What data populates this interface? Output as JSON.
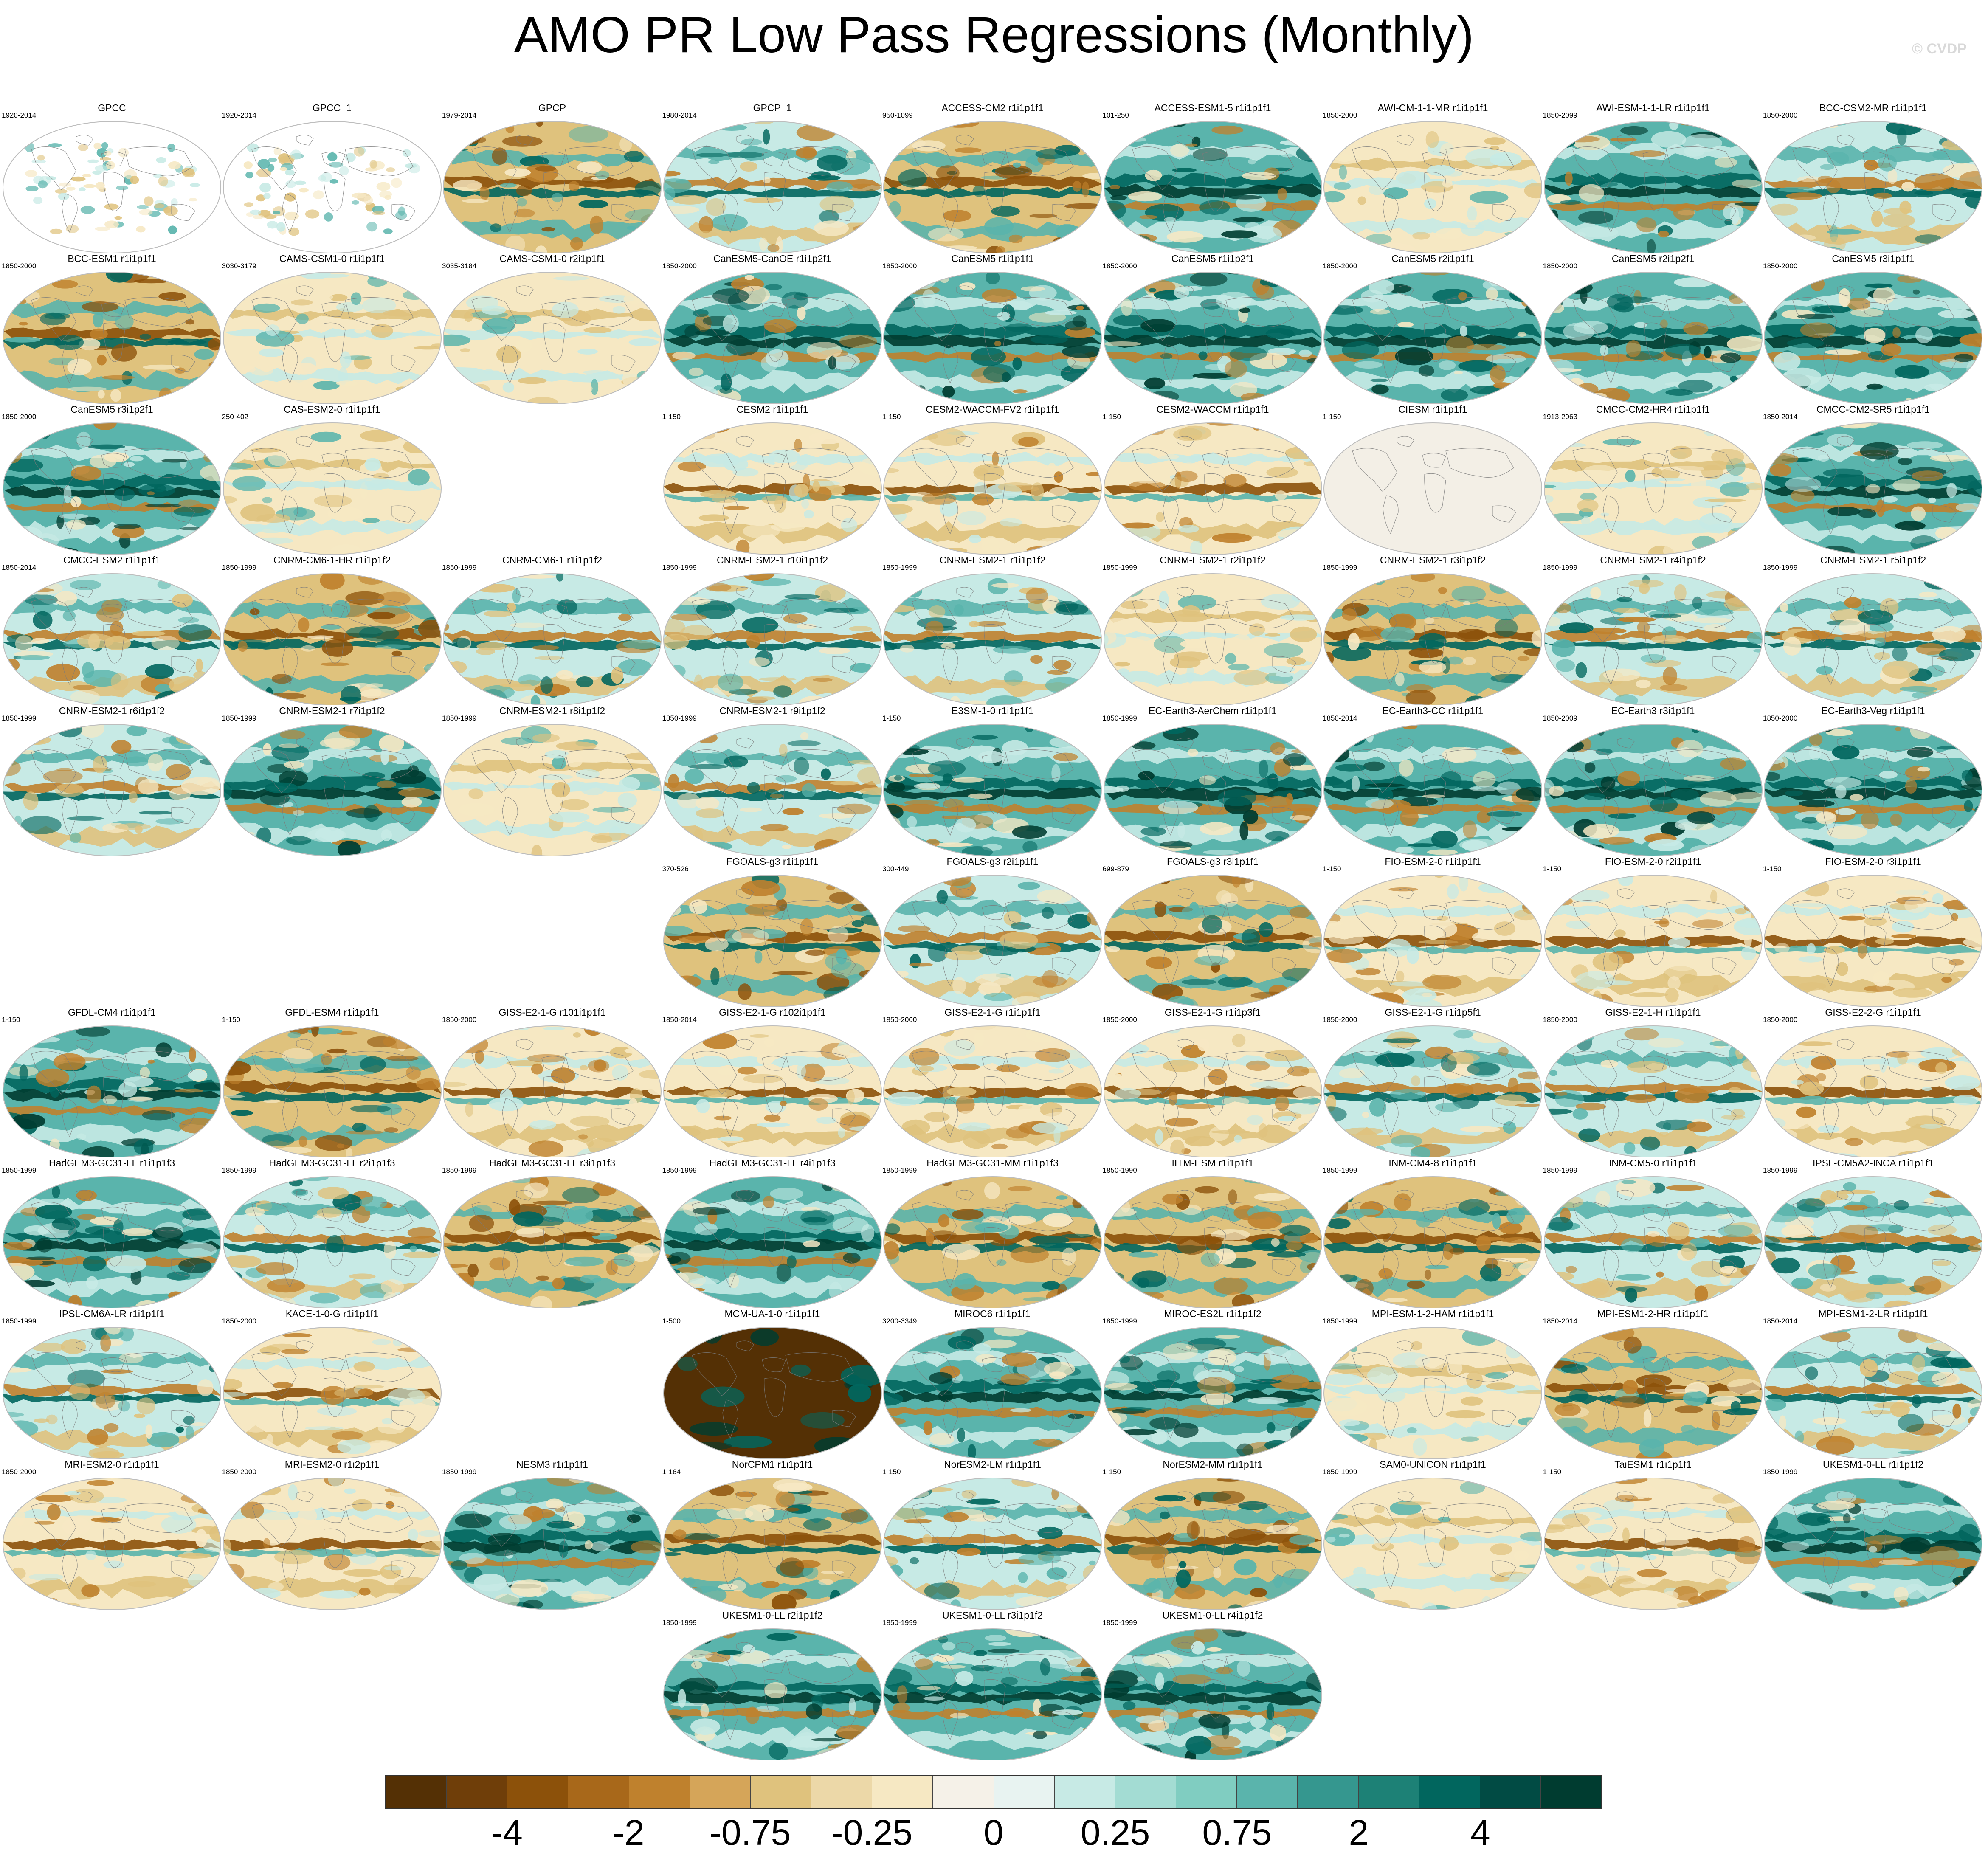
{
  "title": "AMO PR Low Pass Regressions (Monthly)",
  "watermark": "© CVDP",
  "panels": [
    {
      "name": "GPCC",
      "years": "1920-2014",
      "style": "sparse"
    },
    {
      "name": "GPCC_1",
      "years": "1920-2014",
      "style": "sparse"
    },
    {
      "name": "GPCP",
      "years": "1979-2014",
      "style": "brown"
    },
    {
      "name": "GPCP_1",
      "years": "1980-2014",
      "style": "mixed"
    },
    {
      "name": "ACCESS-CM2 r1i1p1f1",
      "years": "950-1099",
      "style": "brown"
    },
    {
      "name": "ACCESS-ESM1-5 r1i1p1f1",
      "years": "101-250",
      "style": "teal"
    },
    {
      "name": "AWI-CM-1-1-MR r1i1p1f1",
      "years": "1850-2000",
      "style": "pale"
    },
    {
      "name": "AWI-ESM-1-1-LR r1i1p1f1",
      "years": "1850-2099",
      "style": "teal"
    },
    {
      "name": "BCC-CSM2-MR r1i1p1f1",
      "years": "1850-2000",
      "style": "mixed"
    },
    {
      "name": "BCC-ESM1 r1i1p1f1",
      "years": "1850-2000",
      "style": "brown"
    },
    {
      "name": "CAMS-CSM1-0 r1i1p1f1",
      "years": "3030-3179",
      "style": "pale"
    },
    {
      "name": "CAMS-CSM1-0 r2i1p1f1",
      "years": "3035-3184",
      "style": "pale"
    },
    {
      "name": "CanESM5-CanOE r1i1p2f1",
      "years": "1850-2000",
      "style": "teal"
    },
    {
      "name": "CanESM5 r1i1p1f1",
      "years": "1850-2000",
      "style": "teal"
    },
    {
      "name": "CanESM5 r1i1p2f1",
      "years": "1850-2000",
      "style": "teal"
    },
    {
      "name": "CanESM5 r2i1p1f1",
      "years": "1850-2000",
      "style": "teal"
    },
    {
      "name": "CanESM5 r2i1p2f1",
      "years": "1850-2000",
      "style": "teal"
    },
    {
      "name": "CanESM5 r3i1p1f1",
      "years": "1850-2000",
      "style": "teal"
    },
    {
      "name": "CanESM5 r3i1p2f1",
      "years": "1850-2000",
      "style": "teal"
    },
    {
      "name": "CAS-ESM2-0 r1i1p1f1",
      "years": "250-402",
      "style": "pale"
    },
    null,
    {
      "name": "CESM2 r1i1p1f1",
      "years": "1-150",
      "style": "palebrown"
    },
    {
      "name": "CESM2-WACCM-FV2 r1i1p1f1",
      "years": "1-150",
      "style": "palebrown"
    },
    {
      "name": "CESM2-WACCM r1i1p1f1",
      "years": "1-150",
      "style": "palebrown"
    },
    {
      "name": "CIESM r1i1p1f1",
      "years": "1-150",
      "style": "blank"
    },
    {
      "name": "CMCC-CM2-HR4 r1i1p1f1",
      "years": "1913-2063",
      "style": "pale"
    },
    {
      "name": "CMCC-CM2-SR5 r1i1p1f1",
      "years": "1850-2014",
      "style": "teal"
    },
    {
      "name": "CMCC-ESM2 r1i1p1f1",
      "years": "1850-2014",
      "style": "mixed"
    },
    {
      "name": "CNRM-CM6-1-HR r1i1p1f2",
      "years": "1850-1999",
      "style": "brown"
    },
    {
      "name": "CNRM-CM6-1 r1i1p1f2",
      "years": "1850-1999",
      "style": "mixed"
    },
    {
      "name": "CNRM-ESM2-1 r10i1p1f2",
      "years": "1850-1999",
      "style": "mixed"
    },
    {
      "name": "CNRM-ESM2-1 r1i1p1f2",
      "years": "1850-1999",
      "style": "mixed"
    },
    {
      "name": "CNRM-ESM2-1 r2i1p1f2",
      "years": "1850-1999",
      "style": "pale"
    },
    {
      "name": "CNRM-ESM2-1 r3i1p1f2",
      "years": "1850-1999",
      "style": "brown"
    },
    {
      "name": "CNRM-ESM2-1 r4i1p1f2",
      "years": "1850-1999",
      "style": "mixed"
    },
    {
      "name": "CNRM-ESM2-1 r5i1p1f2",
      "years": "1850-1999",
      "style": "mixed"
    },
    {
      "name": "CNRM-ESM2-1 r6i1p1f2",
      "years": "1850-1999",
      "style": "mixed"
    },
    {
      "name": "CNRM-ESM2-1 r7i1p1f2",
      "years": "1850-1999",
      "style": "teal"
    },
    {
      "name": "CNRM-ESM2-1 r8i1p1f2",
      "years": "1850-1999",
      "style": "pale"
    },
    {
      "name": "CNRM-ESM2-1 r9i1p1f2",
      "years": "1850-1999",
      "style": "mixed"
    },
    {
      "name": "E3SM-1-0 r1i1p1f1",
      "years": "1-150",
      "style": "teal"
    },
    {
      "name": "EC-Earth3-AerChem r1i1p1f1",
      "years": "1850-1999",
      "style": "teal"
    },
    {
      "name": "EC-Earth3-CC r1i1p1f1",
      "years": "1850-2014",
      "style": "teal"
    },
    {
      "name": "EC-Earth3 r3i1p1f1",
      "years": "1850-2009",
      "style": "teal"
    },
    {
      "name": "EC-Earth3-Veg r1i1p1f1",
      "years": "1850-2000",
      "style": "teal"
    },
    null,
    null,
    null,
    {
      "name": "FGOALS-g3 r1i1p1f1",
      "years": "370-526",
      "style": "brown"
    },
    {
      "name": "FGOALS-g3 r2i1p1f1",
      "years": "300-449",
      "style": "mixed"
    },
    {
      "name": "FGOALS-g3 r3i1p1f1",
      "years": "699-879",
      "style": "brown"
    },
    {
      "name": "FIO-ESM-2-0 r1i1p1f1",
      "years": "1-150",
      "style": "palebrown"
    },
    {
      "name": "FIO-ESM-2-0 r2i1p1f1",
      "years": "1-150",
      "style": "palebrown"
    },
    {
      "name": "FIO-ESM-2-0 r3i1p1f1",
      "years": "1-150",
      "style": "palebrown"
    },
    {
      "name": "GFDL-CM4 r1i1p1f1",
      "years": "1-150",
      "style": "teal"
    },
    {
      "name": "GFDL-ESM4 r1i1p1f1",
      "years": "1-150",
      "style": "brown"
    },
    {
      "name": "GISS-E2-1-G r101i1p1f1",
      "years": "1850-2000",
      "style": "palebrown"
    },
    {
      "name": "GISS-E2-1-G r102i1p1f1",
      "years": "1850-2014",
      "style": "palebrown"
    },
    {
      "name": "GISS-E2-1-G r1i1p1f1",
      "years": "1850-2000",
      "style": "palebrown"
    },
    {
      "name": "GISS-E2-1-G r1i1p3f1",
      "years": "1850-2000",
      "style": "palebrown"
    },
    {
      "name": "GISS-E2-1-G r1i1p5f1",
      "years": "1850-2000",
      "style": "mixed"
    },
    {
      "name": "GISS-E2-1-H r1i1p1f1",
      "years": "1850-2000",
      "style": "mixed"
    },
    {
      "name": "GISS-E2-2-G r1i1p1f1",
      "years": "1850-2000",
      "style": "palebrown"
    },
    {
      "name": "HadGEM3-GC31-LL r1i1p1f3",
      "years": "1850-1999",
      "style": "teal"
    },
    {
      "name": "HadGEM3-GC31-LL r2i1p1f3",
      "years": "1850-1999",
      "style": "mixed"
    },
    {
      "name": "HadGEM3-GC31-LL r3i1p1f3",
      "years": "1850-1999",
      "style": "brown"
    },
    {
      "name": "HadGEM3-GC31-LL r4i1p1f3",
      "years": "1850-1999",
      "style": "teal"
    },
    {
      "name": "HadGEM3-GC31-MM r1i1p1f3",
      "years": "1850-1999",
      "style": "brown"
    },
    {
      "name": "IITM-ESM r1i1p1f1",
      "years": "1850-1990",
      "style": "brown"
    },
    {
      "name": "INM-CM4-8 r1i1p1f1",
      "years": "1850-1999",
      "style": "brown"
    },
    {
      "name": "INM-CM5-0 r1i1p1f1",
      "years": "1850-1999",
      "style": "mixed"
    },
    {
      "name": "IPSL-CM5A2-INCA r1i1p1f1",
      "years": "1850-1999",
      "style": "mixed"
    },
    {
      "name": "IPSL-CM6A-LR r1i1p1f1",
      "years": "1850-1999",
      "style": "mixed"
    },
    {
      "name": "KACE-1-0-G r1i1p1f1",
      "years": "1850-2000",
      "style": "palebrown"
    },
    null,
    {
      "name": "MCM-UA-1-0 r1i1p1f1",
      "years": "1-500",
      "style": "dark"
    },
    {
      "name": "MIROC6 r1i1p1f1",
      "years": "3200-3349",
      "style": "teal"
    },
    {
      "name": "MIROC-ES2L r1i1p1f2",
      "years": "1850-1999",
      "style": "teal"
    },
    {
      "name": "MPI-ESM-1-2-HAM r1i1p1f1",
      "years": "1850-1999",
      "style": "pale"
    },
    {
      "name": "MPI-ESM1-2-HR r1i1p1f1",
      "years": "1850-2014",
      "style": "brown"
    },
    {
      "name": "MPI-ESM1-2-LR r1i1p1f1",
      "years": "1850-2014",
      "style": "mixed"
    },
    {
      "name": "MRI-ESM2-0 r1i1p1f1",
      "years": "1850-2000",
      "style": "palebrown"
    },
    {
      "name": "MRI-ESM2-0 r1i2p1f1",
      "years": "1850-2000",
      "style": "palebrown"
    },
    {
      "name": "NESM3 r1i1p1f1",
      "years": "1850-1999",
      "style": "teal"
    },
    {
      "name": "NorCPM1 r1i1p1f1",
      "years": "1-164",
      "style": "brown"
    },
    {
      "name": "NorESM2-LM r1i1p1f1",
      "years": "1-150",
      "style": "mixed"
    },
    {
      "name": "NorESM2-MM r1i1p1f1",
      "years": "1-150",
      "style": "brown"
    },
    {
      "name": "SAM0-UNICON r1i1p1f1",
      "years": "1850-1999",
      "style": "pale"
    },
    {
      "name": "TaiESM1 r1i1p1f1",
      "years": "1-150",
      "style": "palebrown"
    },
    {
      "name": "UKESM1-0-LL r1i1p1f2",
      "years": "1850-1999",
      "style": "teal"
    },
    null,
    null,
    null,
    {
      "name": "UKESM1-0-LL r2i1p1f2",
      "years": "1850-1999",
      "style": "teal"
    },
    {
      "name": "UKESM1-0-LL r3i1p1f2",
      "years": "1850-1999",
      "style": "teal"
    },
    {
      "name": "UKESM1-0-LL r4i1p1f2",
      "years": "1850-1999",
      "style": "teal"
    }
  ],
  "colorbar": {
    "colors": [
      "#543005",
      "#6f3e09",
      "#8c510a",
      "#a8681a",
      "#bf812d",
      "#d5a559",
      "#dfc27d",
      "#ecd8a8",
      "#f6e8c3",
      "#f5f1e8",
      "#e8f3f1",
      "#c7eae5",
      "#a3dcd3",
      "#80cdc1",
      "#5ab4ac",
      "#35978f",
      "#1d8176",
      "#01665e",
      "#014b44",
      "#003c30"
    ],
    "labels": [
      "-4",
      "-2",
      "-0.75",
      "-0.25",
      "0",
      "0.25",
      "0.75",
      "2",
      "4"
    ],
    "label_boundaries": [
      2,
      4,
      6,
      8,
      10,
      12,
      14,
      16,
      18
    ]
  },
  "map_palette": {
    "dark_brown": "#8c510a",
    "mid_brown": "#bf812d",
    "light_brown": "#dfc27d",
    "cream": "#f6e8c3",
    "light_teal": "#c7eae5",
    "mid_teal": "#5ab4ac",
    "dark_teal": "#01665e",
    "deep_teal": "#003c30",
    "deep_brown": "#543005",
    "coast": "#7a7a7a"
  }
}
